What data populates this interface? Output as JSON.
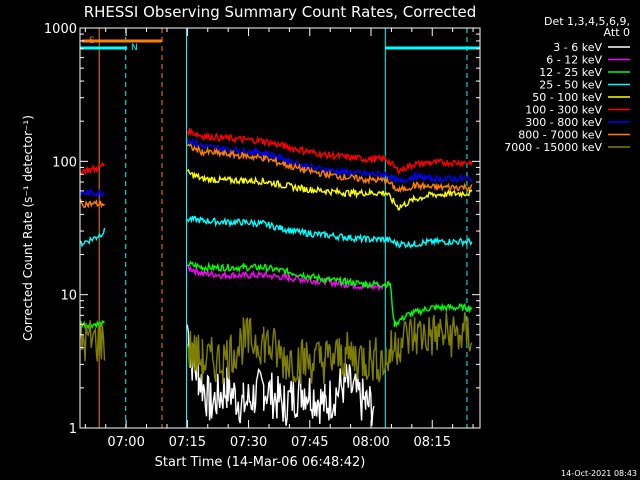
{
  "chart_data": {
    "type": "line",
    "title": "RHESSI Observing Summary Count Rates, Corrected",
    "xlabel": "Start Time (14-Mar-06 06:48:42)",
    "ylabel": "Corrected Count Rate (s⁻¹ detector⁻¹)",
    "yscale": "log",
    "ylim": [
      1,
      1000
    ],
    "xlim_minutes": [
      0,
      98
    ],
    "x_ticks": [
      {
        "t": 11.3,
        "label": "07:00"
      },
      {
        "t": 26.3,
        "label": "07:15"
      },
      {
        "t": 41.3,
        "label": "07:30"
      },
      {
        "t": 56.3,
        "label": "07:45"
      },
      {
        "t": 71.3,
        "label": "08:00"
      },
      {
        "t": 86.3,
        "label": "08:15"
      }
    ],
    "y_ticks": [
      {
        "v": 1,
        "label": "1"
      },
      {
        "v": 10,
        "label": "10"
      },
      {
        "v": 100,
        "label": "100"
      },
      {
        "v": 1000,
        "label": "1000"
      }
    ],
    "legend_header": [
      "Det 1,3,4,5,6,9,",
      "Att 0"
    ],
    "legend_position": "right",
    "series": [
      {
        "name": "3 - 6 keV",
        "color": "#ffffff",
        "pts": [
          [
            26.3,
            6
          ],
          [
            27,
            3.5
          ],
          [
            29,
            2.5
          ],
          [
            32,
            1.5
          ],
          [
            36,
            2
          ],
          [
            40,
            1.5
          ],
          [
            45,
            2
          ],
          [
            50,
            1.5
          ],
          [
            55,
            2
          ],
          [
            60,
            1.5
          ],
          [
            65,
            2.2
          ],
          [
            70,
            1.5
          ],
          [
            72,
            1.5
          ]
        ]
      },
      {
        "name": "6 - 12 keV",
        "color": "#ff00ff",
        "pts": [
          [
            26.3,
            16
          ],
          [
            30,
            14.5
          ],
          [
            35,
            14
          ],
          [
            40,
            14
          ],
          [
            45,
            14
          ],
          [
            50,
            13.5
          ],
          [
            55,
            13
          ],
          [
            60,
            12.5
          ],
          [
            65,
            12
          ],
          [
            70,
            11.5
          ],
          [
            74.5,
            11.5
          ]
        ]
      },
      {
        "name": "12 - 25 keV",
        "color": "#00ff00",
        "pts": [
          [
            0,
            6
          ],
          [
            6,
            6
          ],
          [
            26.3,
            17
          ],
          [
            30,
            16
          ],
          [
            35,
            16
          ],
          [
            40,
            16
          ],
          [
            45,
            16
          ],
          [
            50,
            15
          ],
          [
            55,
            14
          ],
          [
            60,
            13
          ],
          [
            65,
            12.5
          ],
          [
            70,
            12
          ],
          [
            76,
            12
          ],
          [
            77,
            6
          ],
          [
            80,
            7
          ],
          [
            86,
            8
          ],
          [
            96,
            8
          ]
        ]
      },
      {
        "name": "25 - 50 keV",
        "color": "#00ffff",
        "pts": [
          [
            0,
            24
          ],
          [
            4,
            27
          ],
          [
            6,
            30
          ],
          [
            26.3,
            37
          ],
          [
            30,
            36
          ],
          [
            35,
            35
          ],
          [
            40,
            35
          ],
          [
            45,
            34
          ],
          [
            50,
            31
          ],
          [
            55,
            29
          ],
          [
            60,
            28
          ],
          [
            65,
            27
          ],
          [
            70,
            26
          ],
          [
            75,
            26
          ],
          [
            78,
            24
          ],
          [
            82,
            24
          ],
          [
            86,
            25
          ],
          [
            96,
            25
          ]
        ]
      },
      {
        "name": "50 - 100 keV",
        "color": "#ffff00",
        "pts": [
          [
            26.3,
            82
          ],
          [
            30,
            74
          ],
          [
            35,
            72
          ],
          [
            40,
            72
          ],
          [
            45,
            71
          ],
          [
            50,
            66
          ],
          [
            55,
            62
          ],
          [
            60,
            60
          ],
          [
            65,
            58
          ],
          [
            70,
            58
          ],
          [
            75,
            58
          ],
          [
            78,
            45
          ],
          [
            82,
            52
          ],
          [
            86,
            56
          ],
          [
            96,
            58
          ]
        ]
      },
      {
        "name": "100 - 300 keV",
        "color": "#ff0000",
        "pts": [
          [
            0,
            85
          ],
          [
            4,
            88
          ],
          [
            6,
            95
          ],
          [
            26.3,
            170
          ],
          [
            30,
            155
          ],
          [
            35,
            150
          ],
          [
            40,
            146
          ],
          [
            45,
            142
          ],
          [
            50,
            130
          ],
          [
            55,
            120
          ],
          [
            60,
            112
          ],
          [
            65,
            108
          ],
          [
            70,
            104
          ],
          [
            75,
            104
          ],
          [
            78,
            85
          ],
          [
            82,
            95
          ],
          [
            86,
            98
          ],
          [
            96,
            98
          ]
        ]
      },
      {
        "name": "300 - 800 keV",
        "color": "#0000ff",
        "pts": [
          [
            0,
            58
          ],
          [
            6,
            58
          ],
          [
            26.3,
            145
          ],
          [
            30,
            130
          ],
          [
            35,
            124
          ],
          [
            40,
            120
          ],
          [
            45,
            116
          ],
          [
            50,
            104
          ],
          [
            55,
            92
          ],
          [
            60,
            86
          ],
          [
            65,
            83
          ],
          [
            70,
            80
          ],
          [
            75,
            80
          ],
          [
            78,
            70
          ],
          [
            82,
            78
          ],
          [
            86,
            74
          ],
          [
            96,
            74
          ]
        ]
      },
      {
        "name": "800 - 7000 keV",
        "color": "#ff8000",
        "pts": [
          [
            0,
            48
          ],
          [
            6,
            48
          ],
          [
            26.3,
            130
          ],
          [
            30,
            118
          ],
          [
            35,
            114
          ],
          [
            40,
            110
          ],
          [
            45,
            106
          ],
          [
            50,
            95
          ],
          [
            55,
            86
          ],
          [
            60,
            80
          ],
          [
            65,
            76
          ],
          [
            70,
            73
          ],
          [
            75,
            72
          ],
          [
            78,
            60
          ],
          [
            82,
            66
          ],
          [
            86,
            64
          ],
          [
            96,
            64
          ]
        ]
      },
      {
        "name": "7000 - 15000 keV",
        "color": "#808000",
        "pts": [
          [
            0,
            4.5
          ],
          [
            6,
            4.5
          ],
          [
            26.3,
            4
          ],
          [
            30,
            3.2
          ],
          [
            35,
            3.2
          ],
          [
            40,
            4.5
          ],
          [
            45,
            4.5
          ],
          [
            50,
            3.3
          ],
          [
            55,
            3.2
          ],
          [
            60,
            3.2
          ],
          [
            65,
            3.5
          ],
          [
            70,
            3.3
          ],
          [
            75,
            3.2
          ],
          [
            78,
            4.5
          ],
          [
            82,
            5
          ],
          [
            86,
            5
          ],
          [
            96,
            5
          ]
        ]
      }
    ],
    "attenuator_marks": [
      {
        "label": "S",
        "t1": 0.5,
        "t2": 20.0,
        "color": "#ff8000"
      }
    ],
    "night_marks": [
      {
        "label": "N",
        "t1": 0.1,
        "t2": 11.5,
        "color": "#00ffff"
      },
      {
        "label": "",
        "t1": 74.8,
        "t2": 98,
        "color": "#00ffff"
      }
    ],
    "vlines": [
      {
        "t": 4.7,
        "color": "#ff8000",
        "dash": false
      },
      {
        "t": 11.2,
        "color": "#00ffff",
        "dash": true
      },
      {
        "t": 20.1,
        "color": "#ff8000",
        "dash": true
      },
      {
        "t": 26.1,
        "color": "#00ffff",
        "dash": false
      },
      {
        "t": 74.8,
        "color": "#00ffff",
        "dash": false
      },
      {
        "t": 94.8,
        "color": "#00ffff",
        "dash": true
      }
    ],
    "footer_date": "14-Oct-2021 08:43"
  }
}
